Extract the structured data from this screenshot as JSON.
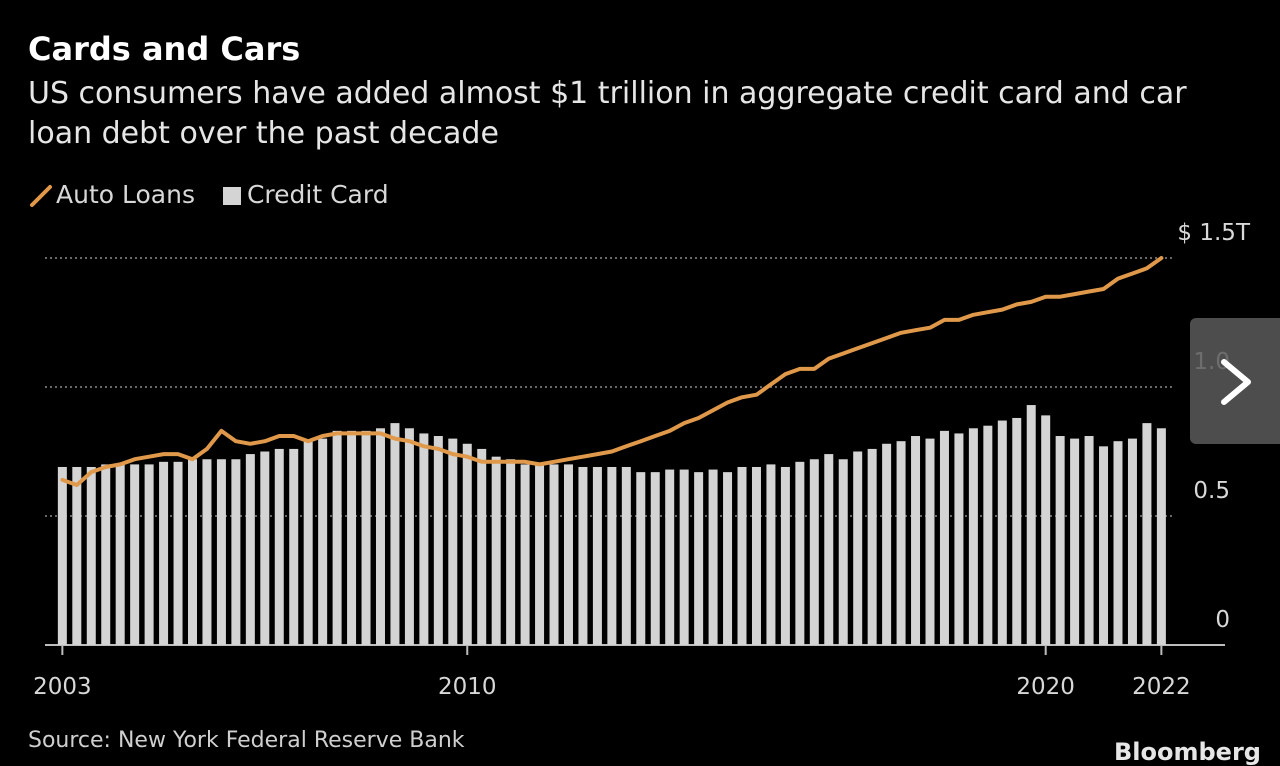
{
  "chart_data": {
    "type": "bar-line",
    "title": "Cards and Cars",
    "subtitle": "US consumers have added almost $1 trillion in aggregate credit card and car loan debt over the past decade",
    "source": "Source: New York Federal Reserve Bank",
    "logo": "Bloomberg",
    "x": [
      2003,
      2003.25,
      2003.5,
      2003.75,
      2004,
      2004.25,
      2004.5,
      2004.75,
      2005,
      2005.25,
      2005.5,
      2005.75,
      2006,
      2006.25,
      2006.5,
      2006.75,
      2007,
      2007.25,
      2007.5,
      2007.75,
      2008,
      2008.25,
      2008.5,
      2008.75,
      2009,
      2009.25,
      2009.5,
      2009.75,
      2010,
      2010.25,
      2010.5,
      2010.75,
      2011,
      2011.25,
      2011.5,
      2011.75,
      2012,
      2012.25,
      2012.5,
      2012.75,
      2013,
      2013.25,
      2013.5,
      2013.75,
      2014,
      2014.25,
      2014.5,
      2014.75,
      2015,
      2015.25,
      2015.5,
      2015.75,
      2016,
      2016.25,
      2016.5,
      2016.75,
      2017,
      2017.25,
      2017.5,
      2017.75,
      2018,
      2018.25,
      2018.5,
      2018.75,
      2019,
      2019.25,
      2019.5,
      2019.75,
      2020,
      2020.25,
      2020.5,
      2020.75,
      2021,
      2021.25,
      2021.5,
      2021.75,
      2022
    ],
    "series": [
      {
        "name": "Auto Loans",
        "kind": "line",
        "color": "#e0994a",
        "values": [
          0.64,
          0.62,
          0.67,
          0.69,
          0.7,
          0.72,
          0.73,
          0.74,
          0.74,
          0.72,
          0.76,
          0.83,
          0.79,
          0.78,
          0.79,
          0.81,
          0.81,
          0.79,
          0.81,
          0.82,
          0.82,
          0.82,
          0.82,
          0.8,
          0.79,
          0.77,
          0.76,
          0.74,
          0.73,
          0.71,
          0.71,
          0.71,
          0.71,
          0.7,
          0.71,
          0.72,
          0.73,
          0.74,
          0.75,
          0.77,
          0.79,
          0.81,
          0.83,
          0.86,
          0.88,
          0.91,
          0.94,
          0.96,
          0.97,
          1.01,
          1.05,
          1.07,
          1.07,
          1.11,
          1.13,
          1.15,
          1.17,
          1.19,
          1.21,
          1.22,
          1.23,
          1.26,
          1.26,
          1.28,
          1.29,
          1.3,
          1.32,
          1.33,
          1.35,
          1.35,
          1.36,
          1.37,
          1.38,
          1.42,
          1.44,
          1.46,
          1.5
        ]
      },
      {
        "name": "Credit Card",
        "kind": "bar",
        "color": "#d4d4d4",
        "values": [
          0.69,
          0.69,
          0.69,
          0.7,
          0.7,
          0.7,
          0.7,
          0.71,
          0.71,
          0.72,
          0.72,
          0.72,
          0.72,
          0.74,
          0.75,
          0.76,
          0.76,
          0.79,
          0.8,
          0.83,
          0.83,
          0.83,
          0.84,
          0.86,
          0.84,
          0.82,
          0.81,
          0.8,
          0.78,
          0.76,
          0.73,
          0.72,
          0.7,
          0.7,
          0.7,
          0.7,
          0.69,
          0.69,
          0.69,
          0.69,
          0.67,
          0.67,
          0.68,
          0.68,
          0.67,
          0.68,
          0.67,
          0.69,
          0.69,
          0.7,
          0.69,
          0.71,
          0.72,
          0.74,
          0.72,
          0.75,
          0.76,
          0.78,
          0.79,
          0.81,
          0.8,
          0.83,
          0.82,
          0.84,
          0.85,
          0.87,
          0.88,
          0.93,
          0.89,
          0.81,
          0.8,
          0.81,
          0.77,
          0.79,
          0.8,
          0.86,
          0.84
        ]
      }
    ],
    "xlim": [
      2002.7,
      2023.1
    ],
    "xticks": [
      2003,
      2010,
      2020,
      2022
    ],
    "ylim": [
      0,
      1.5
    ],
    "yticks": [
      0,
      0.5,
      {
        "value": 1,
        "label": "1.0"
      },
      {
        "value": 1.5,
        "label": "$ 1.5T"
      }
    ],
    "grid": true
  }
}
